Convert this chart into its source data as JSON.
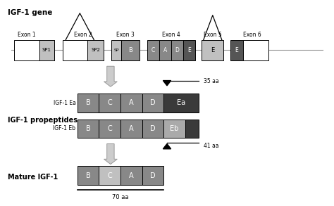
{
  "bg_color": "#ffffff",
  "colors": {
    "white_box": "#ffffff",
    "light_gray": "#c0c0c0",
    "mid_gray": "#888888",
    "dark_gray": "#555555",
    "darker_gray": "#3a3a3a",
    "eb_light": "#aaaaaa",
    "line_color": "#000000",
    "arrow_gray_face": "#cccccc",
    "arrow_gray_edge": "#999999",
    "backbone": "#999999"
  },
  "title": "IGF-1 gene",
  "igf_propeptides_label": "IGF-1 propeptides",
  "mature_label": "Mature IGF-1",
  "aa_35": "35 aa",
  "aa_41": "41 aa",
  "aa_70": "70 aa"
}
